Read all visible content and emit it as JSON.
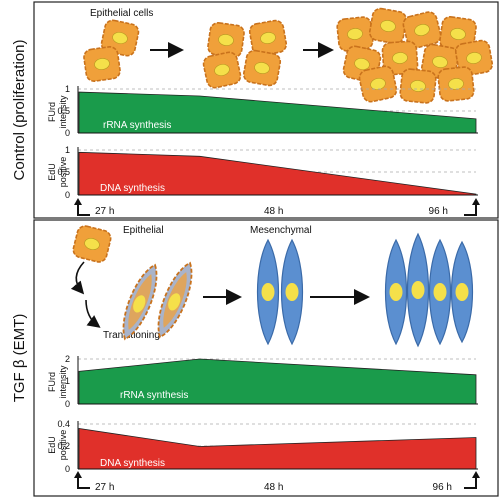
{
  "panels": {
    "control": {
      "side_label": "Control (proliferation)",
      "cells_label": "Epithelial cells",
      "rrna": {
        "ylabel_line1": "FUrd",
        "ylabel_line2": "intensity",
        "series_label": "rRNA synthesis",
        "ticks": [
          "1",
          "0.5",
          "0"
        ],
        "ymax": 1,
        "points": [
          {
            "t": 27,
            "v": 0.93
          },
          {
            "t": 48,
            "v": 0.84
          },
          {
            "t": 96,
            "v": 0.32
          }
        ],
        "color": "#1a9b4b"
      },
      "dna": {
        "ylabel_line1": "EdU",
        "ylabel_line2": "positive",
        "series_label": "DNA synthesis",
        "ticks": [
          "1",
          "0.5",
          "0"
        ],
        "ymax": 1,
        "points": [
          {
            "t": 27,
            "v": 0.95
          },
          {
            "t": 48,
            "v": 0.86
          },
          {
            "t": 96,
            "v": 0.02
          }
        ],
        "color": "#e0302a"
      },
      "time_labels": [
        "27 h",
        "48 h",
        "96 h"
      ]
    },
    "emt": {
      "side_label": "TGF β (EMT)",
      "epithelial_label": "Epithelial",
      "mesenchymal_label": "Mesenchymal",
      "transitioning_label": "Transitioning",
      "rrna": {
        "ylabel_line1": "FUrd",
        "ylabel_line2": "intensity",
        "series_label": "rRNA synthesis",
        "ticks": [
          "2",
          "1",
          "0"
        ],
        "ymax": 2,
        "points": [
          {
            "t": 27,
            "v": 1.45
          },
          {
            "t": 48,
            "v": 2.0
          },
          {
            "t": 96,
            "v": 1.3
          }
        ],
        "color": "#1a9b4b"
      },
      "dna": {
        "ylabel_line1": "EdU",
        "ylabel_line2": "positive",
        "series_label": "DNA synthesis",
        "ticks": [
          "0.4",
          "0.2",
          "0"
        ],
        "ymax": 0.4,
        "points": [
          {
            "t": 27,
            "v": 0.36
          },
          {
            "t": 48,
            "v": 0.2
          },
          {
            "t": 96,
            "v": 0.28
          }
        ],
        "color": "#e0302a"
      },
      "time_labels": [
        "27 h",
        "48 h",
        "96 h"
      ]
    }
  },
  "colors": {
    "epithelial_fill": "#f0a03a",
    "epithelial_edge": "#c9721c",
    "nucleus": "#f5e04a",
    "mesenchymal_fill": "#5b8fd0",
    "mesenchymal_edge": "#3a6aa8"
  }
}
